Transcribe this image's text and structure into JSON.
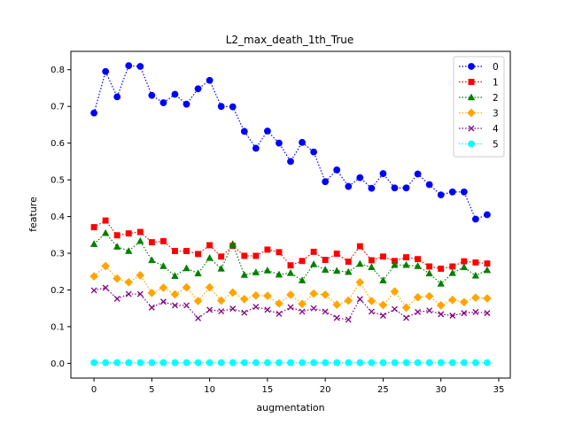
{
  "chart_data": {
    "type": "line",
    "title": "L2_max_death_1th_True",
    "xlabel": "augmentation",
    "ylabel": "feature",
    "xlim": [
      -2,
      36
    ],
    "ylim": [
      -0.04,
      0.85
    ],
    "xticks": [
      0,
      5,
      10,
      15,
      20,
      25,
      30,
      35
    ],
    "yticks": [
      0.0,
      0.1,
      0.2,
      0.3,
      0.4,
      0.5,
      0.6,
      0.7,
      0.8
    ],
    "grid": false,
    "legend_position": "top-right",
    "x": [
      0,
      1,
      2,
      3,
      4,
      5,
      6,
      7,
      8,
      9,
      10,
      11,
      12,
      13,
      14,
      15,
      16,
      17,
      18,
      19,
      20,
      21,
      22,
      23,
      24,
      25,
      26,
      27,
      28,
      29,
      30,
      31,
      32,
      33,
      34
    ],
    "series": [
      {
        "name": "0",
        "color": "#0000ff",
        "marker": "circle",
        "values": [
          0.682,
          0.795,
          0.726,
          0.811,
          0.809,
          0.73,
          0.71,
          0.733,
          0.706,
          0.748,
          0.771,
          0.7,
          0.699,
          0.632,
          0.586,
          0.633,
          0.6,
          0.55,
          0.602,
          0.576,
          0.495,
          0.527,
          0.482,
          0.506,
          0.477,
          0.517,
          0.478,
          0.478,
          0.516,
          0.487,
          0.459,
          0.467,
          0.467,
          0.393,
          0.405
        ]
      },
      {
        "name": "1",
        "color": "#ff0000",
        "marker": "square",
        "values": [
          0.371,
          0.389,
          0.349,
          0.354,
          0.358,
          0.33,
          0.333,
          0.306,
          0.306,
          0.298,
          0.322,
          0.291,
          0.32,
          0.293,
          0.293,
          0.31,
          0.303,
          0.267,
          0.279,
          0.304,
          0.282,
          0.299,
          0.277,
          0.319,
          0.281,
          0.291,
          0.279,
          0.289,
          0.284,
          0.264,
          0.258,
          0.264,
          0.278,
          0.275,
          0.272
        ]
      },
      {
        "name": "2",
        "color": "#008000",
        "marker": "triangle",
        "values": [
          0.325,
          0.355,
          0.318,
          0.306,
          0.333,
          0.281,
          0.265,
          0.238,
          0.259,
          0.245,
          0.287,
          0.258,
          0.325,
          0.241,
          0.248,
          0.253,
          0.242,
          0.246,
          0.226,
          0.27,
          0.255,
          0.252,
          0.249,
          0.271,
          0.262,
          0.226,
          0.268,
          0.268,
          0.265,
          0.245,
          0.217,
          0.246,
          0.262,
          0.239,
          0.254
        ]
      },
      {
        "name": "3",
        "color": "#ffa500",
        "marker": "diamond",
        "values": [
          0.237,
          0.265,
          0.231,
          0.221,
          0.24,
          0.192,
          0.206,
          0.188,
          0.207,
          0.17,
          0.207,
          0.171,
          0.193,
          0.175,
          0.185,
          0.184,
          0.163,
          0.187,
          0.162,
          0.19,
          0.187,
          0.16,
          0.171,
          0.221,
          0.17,
          0.159,
          0.196,
          0.152,
          0.18,
          0.183,
          0.158,
          0.173,
          0.167,
          0.179,
          0.177
        ]
      },
      {
        "name": "4",
        "color": "#800080",
        "marker": "x",
        "values": [
          0.199,
          0.206,
          0.176,
          0.189,
          0.189,
          0.152,
          0.168,
          0.158,
          0.158,
          0.123,
          0.146,
          0.142,
          0.149,
          0.138,
          0.154,
          0.146,
          0.135,
          0.153,
          0.141,
          0.15,
          0.141,
          0.124,
          0.119,
          0.175,
          0.141,
          0.13,
          0.148,
          0.124,
          0.14,
          0.144,
          0.134,
          0.13,
          0.137,
          0.14,
          0.137
        ]
      },
      {
        "name": "5",
        "color": "#00ffff",
        "marker": "circle",
        "values": [
          0.002,
          0.002,
          0.002,
          0.002,
          0.002,
          0.002,
          0.002,
          0.002,
          0.002,
          0.002,
          0.002,
          0.002,
          0.002,
          0.002,
          0.002,
          0.002,
          0.002,
          0.002,
          0.002,
          0.002,
          0.002,
          0.002,
          0.002,
          0.002,
          0.002,
          0.002,
          0.002,
          0.002,
          0.002,
          0.002,
          0.002,
          0.002,
          0.002,
          0.002,
          0.002
        ]
      }
    ]
  }
}
